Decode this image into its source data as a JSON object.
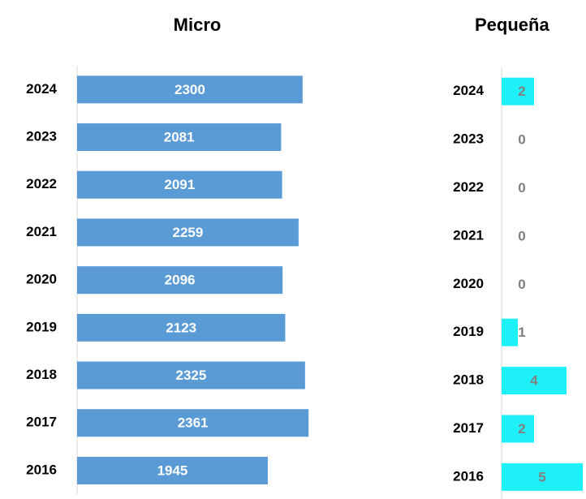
{
  "chart_data": [
    {
      "type": "bar",
      "orientation": "horizontal",
      "title": "Micro",
      "categories": [
        "2024",
        "2023",
        "2022",
        "2021",
        "2020",
        "2019",
        "2018",
        "2017",
        "2016"
      ],
      "values": [
        2300,
        2081,
        2091,
        2259,
        2096,
        2123,
        2325,
        2361,
        1945
      ],
      "color": "#5b9bd5",
      "label_color": "#ffffff",
      "xlim": [
        0,
        2500
      ]
    },
    {
      "type": "bar",
      "orientation": "horizontal",
      "title": "Pequeña",
      "categories": [
        "2024",
        "2023",
        "2022",
        "2021",
        "2020",
        "2019",
        "2018",
        "2017",
        "2016"
      ],
      "values": [
        2,
        0,
        0,
        0,
        0,
        1,
        4,
        2,
        5
      ],
      "color": "#1ef0f8",
      "label_color": "#808080",
      "xlim": [
        0,
        5
      ]
    }
  ]
}
